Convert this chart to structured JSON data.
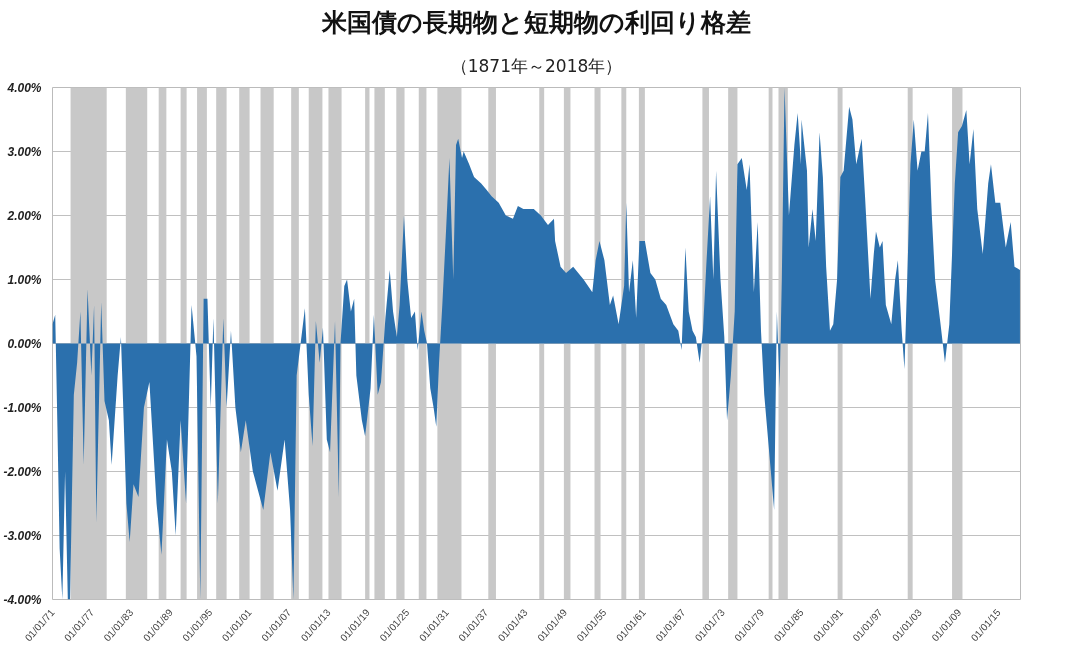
{
  "chart_data": {
    "type": "area",
    "title": "米国債の長期物と短期物の利回り格差",
    "subtitle": "（1871年～2018年）",
    "xlim": [
      "1871-01",
      "2018-05"
    ],
    "ylim": [
      -4,
      4
    ],
    "xticks": [
      {
        "value": "1871-01-01",
        "label": "01/01/71"
      },
      {
        "value": "1877-01-01",
        "label": "01/01/77"
      },
      {
        "value": "1883-01-01",
        "label": "01/01/83"
      },
      {
        "value": "1889-01-01",
        "label": "01/01/89"
      },
      {
        "value": "1895-01-01",
        "label": "01/01/95"
      },
      {
        "value": "1901-01-01",
        "label": "01/01/01"
      },
      {
        "value": "1907-01-01",
        "label": "01/01/07"
      },
      {
        "value": "1913-01-01",
        "label": "01/01/13"
      },
      {
        "value": "1919-01-01",
        "label": "01/01/19"
      },
      {
        "value": "1925-01-01",
        "label": "01/01/25"
      },
      {
        "value": "1931-01-01",
        "label": "01/01/31"
      },
      {
        "value": "1937-01-01",
        "label": "01/01/37"
      },
      {
        "value": "1943-01-01",
        "label": "01/01/43"
      },
      {
        "value": "1949-01-01",
        "label": "01/01/49"
      },
      {
        "value": "1955-01-01",
        "label": "01/01/55"
      },
      {
        "value": "1961-01-01",
        "label": "01/01/61"
      },
      {
        "value": "1967-01-01",
        "label": "01/01/67"
      },
      {
        "value": "1973-01-01",
        "label": "01/01/73"
      },
      {
        "value": "1979-01-01",
        "label": "01/01/79"
      },
      {
        "value": "1985-01-01",
        "label": "01/01/85"
      },
      {
        "value": "1991-01-01",
        "label": "01/01/91"
      },
      {
        "value": "1997-01-01",
        "label": "01/01/97"
      },
      {
        "value": "2003-01-01",
        "label": "01/01/03"
      },
      {
        "value": "2009-01-01",
        "label": "01/01/09"
      },
      {
        "value": "2015-01-01",
        "label": "01/01/15"
      }
    ],
    "yticks": [
      {
        "value": -4,
        "label": "-4.00%"
      },
      {
        "value": -3,
        "label": "-3.00%"
      },
      {
        "value": -2,
        "label": "-2.00%"
      },
      {
        "value": -1,
        "label": "-1.00%"
      },
      {
        "value": 0,
        "label": "0.00%"
      },
      {
        "value": 1,
        "label": "1.00%"
      },
      {
        "value": 2,
        "label": "2.00%"
      },
      {
        "value": 3,
        "label": "3.00%"
      },
      {
        "value": 4,
        "label": "4.00%"
      }
    ],
    "grid": "y",
    "bands": [
      {
        "axis": "x",
        "from": "1873-10",
        "to": "1879-04",
        "color": "#c8c8c8"
      },
      {
        "axis": "x",
        "from": "1882-03",
        "to": "1885-06",
        "color": "#c8c8c8"
      },
      {
        "axis": "x",
        "from": "1887-03",
        "to": "1888-05",
        "color": "#c8c8c8"
      },
      {
        "axis": "x",
        "from": "1890-07",
        "to": "1891-06",
        "color": "#c8c8c8"
      },
      {
        "axis": "x",
        "from": "1893-01",
        "to": "1894-07",
        "color": "#c8c8c8"
      },
      {
        "axis": "x",
        "from": "1895-12",
        "to": "1897-07",
        "color": "#c8c8c8"
      },
      {
        "axis": "x",
        "from": "1899-06",
        "to": "1901-01",
        "color": "#c8c8c8"
      },
      {
        "axis": "x",
        "from": "1902-09",
        "to": "1904-09",
        "color": "#c8c8c8"
      },
      {
        "axis": "x",
        "from": "1907-05",
        "to": "1908-07",
        "color": "#c8c8c8"
      },
      {
        "axis": "x",
        "from": "1910-01",
        "to": "1912-02",
        "color": "#c8c8c8"
      },
      {
        "axis": "x",
        "from": "1913-01",
        "to": "1915-01",
        "color": "#c8c8c8"
      },
      {
        "axis": "x",
        "from": "1918-08",
        "to": "1919-04",
        "color": "#c8c8c8"
      },
      {
        "axis": "x",
        "from": "1920-01",
        "to": "1921-08",
        "color": "#c8c8c8"
      },
      {
        "axis": "x",
        "from": "1923-05",
        "to": "1924-08",
        "color": "#c8c8c8"
      },
      {
        "axis": "x",
        "from": "1926-10",
        "to": "1927-12",
        "color": "#c8c8c8"
      },
      {
        "axis": "x",
        "from": "1929-08",
        "to": "1933-04",
        "color": "#c8c8c8"
      },
      {
        "axis": "x",
        "from": "1937-05",
        "to": "1938-07",
        "color": "#c8c8c8"
      },
      {
        "axis": "x",
        "from": "1945-02",
        "to": "1945-11",
        "color": "#c8c8c8"
      },
      {
        "axis": "x",
        "from": "1948-11",
        "to": "1949-11",
        "color": "#c8c8c8"
      },
      {
        "axis": "x",
        "from": "1953-07",
        "to": "1954-06",
        "color": "#c8c8c8"
      },
      {
        "axis": "x",
        "from": "1957-08",
        "to": "1958-05",
        "color": "#c8c8c8"
      },
      {
        "axis": "x",
        "from": "1960-04",
        "to": "1961-03",
        "color": "#c8c8c8"
      },
      {
        "axis": "x",
        "from": "1969-12",
        "to": "1970-12",
        "color": "#c8c8c8"
      },
      {
        "axis": "x",
        "from": "1973-11",
        "to": "1975-04",
        "color": "#c8c8c8"
      },
      {
        "axis": "x",
        "from": "1980-01",
        "to": "1980-08",
        "color": "#c8c8c8"
      },
      {
        "axis": "x",
        "from": "1981-07",
        "to": "1982-12",
        "color": "#c8c8c8"
      },
      {
        "axis": "x",
        "from": "1990-07",
        "to": "1991-04",
        "color": "#c8c8c8"
      },
      {
        "axis": "x",
        "from": "2001-03",
        "to": "2001-12",
        "color": "#c8c8c8"
      },
      {
        "axis": "x",
        "from": "2007-12",
        "to": "2009-07",
        "color": "#c8c8c8"
      }
    ],
    "series": [
      {
        "color": "#2b70ad",
        "x": [
          "1871-01",
          "1871-06",
          "1871-10",
          "1872-02",
          "1872-07",
          "1872-12",
          "1873-05",
          "1873-09",
          "1874-04",
          "1874-10",
          "1875-04",
          "1875-10",
          "1876-05",
          "1876-12",
          "1877-05",
          "1877-09",
          "1878-06",
          "1878-12",
          "1879-08",
          "1880-01",
          "1880-12",
          "1881-06",
          "1882-04",
          "1882-10",
          "1883-05",
          "1884-02",
          "1884-12",
          "1885-10",
          "1886-11",
          "1887-08",
          "1888-06",
          "1889-03",
          "1889-10",
          "1890-07",
          "1891-05",
          "1892-03",
          "1892-12",
          "1893-07",
          "1894-01",
          "1894-08",
          "1895-02",
          "1895-07",
          "1896-03",
          "1897-01",
          "1897-07",
          "1898-03",
          "1898-11",
          "1899-09",
          "1900-06",
          "1901-07",
          "1903-02",
          "1904-03",
          "1905-04",
          "1906-05",
          "1907-03",
          "1907-09",
          "1908-03",
          "1909-01",
          "1909-06",
          "1910-01",
          "1910-08",
          "1911-02",
          "1911-09",
          "1912-03",
          "1912-10",
          "1913-04",
          "1914-01",
          "1914-08",
          "1914-11",
          "1915-06",
          "1915-11",
          "1916-06",
          "1916-12",
          "1917-04",
          "1918-02",
          "1918-08",
          "1919-06",
          "1919-12",
          "1920-07",
          "1921-01",
          "1921-09",
          "1922-05",
          "1922-11",
          "1923-06",
          "1923-11",
          "1924-07",
          "1925-01",
          "1925-08",
          "1926-03",
          "1926-08",
          "1927-03",
          "1927-08",
          "1928-01",
          "1928-07",
          "1929-01",
          "1929-06",
          "1929-11",
          "1930-05",
          "1930-12",
          "1931-06",
          "1932-01",
          "1932-06",
          "1932-10",
          "1933-05",
          "1933-08",
          "1934-06",
          "1935-03",
          "1936-04",
          "1937-02",
          "1937-11",
          "1938-12",
          "1940-01",
          "1941-02",
          "1941-11",
          "1942-09",
          "1944-04",
          "1945-05",
          "1946-06",
          "1947-05",
          "1947-07",
          "1948-05",
          "1949-03",
          "1950-04",
          "1951-11",
          "1953-03",
          "1953-09",
          "1954-04",
          "1955-01",
          "1955-11",
          "1956-05",
          "1957-03",
          "1958-01",
          "1958-05",
          "1958-10",
          "1959-05",
          "1959-11",
          "1960-05",
          "1961-03",
          "1962-01",
          "1962-10",
          "1963-08",
          "1964-06",
          "1965-07",
          "1966-04",
          "1966-10",
          "1967-05",
          "1967-11",
          "1968-06",
          "1968-12",
          "1969-07",
          "1970-01",
          "1970-07",
          "1971-02",
          "1971-08",
          "1972-01",
          "1972-09",
          "1973-04",
          "1973-09",
          "1974-04",
          "1974-11",
          "1975-04",
          "1975-12",
          "1976-09",
          "1977-02",
          "1977-10",
          "1978-05",
          "1978-11",
          "1979-05",
          "1980-03",
          "1980-11",
          "1981-04",
          "1981-09",
          "1982-01",
          "1982-06",
          "1983-02",
          "1983-12",
          "1984-06",
          "1984-12",
          "1985-01",
          "1985-11",
          "1986-02",
          "1986-09",
          "1987-03",
          "1987-10",
          "1988-04",
          "1988-10",
          "1989-05",
          "1989-11",
          "1990-06",
          "1990-12",
          "1991-06",
          "1992-04",
          "1992-10",
          "1993-05",
          "1994-03",
          "1994-09",
          "1995-07",
          "1996-01",
          "1996-05",
          "1996-12",
          "1997-05",
          "1997-11",
          "1998-09",
          "1999-04",
          "1999-09",
          "2000-04",
          "2000-09",
          "2001-02",
          "2001-08",
          "2002-02",
          "2002-09",
          "2003-04",
          "2003-10",
          "2004-04",
          "2004-11",
          "2005-05",
          "2006-03",
          "2006-11",
          "2007-07",
          "2008-05",
          "2008-11",
          "2009-06",
          "2010-02",
          "2010-08",
          "2011-03",
          "2011-10",
          "2012-08",
          "2013-06",
          "2013-11",
          "2014-07",
          "2015-04",
          "2016-02",
          "2016-11",
          "2017-06",
          "2018-04"
        ],
        "values": [
          0.3,
          0.45,
          -1.3,
          -3.2,
          -4.0,
          -2.0,
          -4.0,
          -4.0,
          -0.8,
          -0.3,
          0.5,
          -1.9,
          0.85,
          -0.5,
          0.6,
          -2.8,
          0.65,
          -0.9,
          -1.2,
          -1.9,
          -0.5,
          0.1,
          -2.5,
          -3.1,
          -2.2,
          -2.4,
          -1.0,
          -0.6,
          -2.5,
          -3.3,
          -1.5,
          -2.0,
          -3.0,
          -1.2,
          -2.5,
          0.6,
          -0.2,
          -4.0,
          0.7,
          0.7,
          -1.0,
          0.4,
          -2.5,
          0.4,
          -1.0,
          0.2,
          -1.0,
          -1.7,
          -1.2,
          -2.0,
          -2.6,
          -1.7,
          -2.3,
          -1.5,
          -2.6,
          -4.0,
          -0.5,
          0.2,
          0.55,
          -0.8,
          -1.6,
          0.35,
          -0.3,
          0.25,
          -1.5,
          -1.7,
          0.35,
          -2.4,
          0.0,
          0.9,
          1.0,
          0.5,
          0.7,
          -0.5,
          -1.2,
          -1.45,
          -0.7,
          0.45,
          -0.8,
          -0.6,
          0.4,
          1.15,
          0.5,
          0.1,
          0.6,
          2.0,
          1.0,
          0.4,
          0.5,
          -0.1,
          0.5,
          0.2,
          0.0,
          -0.7,
          -1.0,
          -1.3,
          -0.3,
          0.6,
          1.8,
          2.9,
          1.0,
          3.1,
          3.2,
          2.9,
          3.0,
          2.8,
          2.6,
          2.5,
          2.4,
          2.3,
          2.2,
          2.0,
          1.95,
          2.15,
          2.1,
          2.1,
          2.0,
          1.85,
          1.95,
          1.6,
          1.2,
          1.1,
          1.2,
          1.0,
          0.8,
          1.3,
          1.6,
          1.3,
          0.6,
          0.75,
          0.3,
          0.9,
          2.2,
          0.8,
          1.3,
          0.4,
          1.6,
          1.6,
          1.1,
          1.0,
          0.7,
          0.6,
          0.3,
          0.2,
          -0.1,
          1.5,
          0.5,
          0.2,
          0.1,
          -0.3,
          0.2,
          1.2,
          2.3,
          1.0,
          2.7,
          1.0,
          0.1,
          -1.2,
          -0.5,
          0.5,
          2.8,
          2.9,
          2.4,
          2.8,
          0.8,
          1.9,
          0.2,
          -0.8,
          -1.8,
          -2.6,
          0.5,
          -0.7,
          1.0,
          4.0,
          2.0,
          3.1,
          3.6,
          2.8,
          3.5,
          2.7,
          1.5,
          2.1,
          1.6,
          3.3,
          2.6,
          1.2,
          0.2,
          0.3,
          1.0,
          2.6,
          2.7,
          3.7,
          3.5,
          2.8,
          3.2,
          2.3,
          0.7,
          1.4,
          1.75,
          1.5,
          1.6,
          0.6,
          0.3,
          1.0,
          1.3,
          0.2,
          -0.4,
          1.0,
          2.8,
          3.5,
          2.7,
          3.0,
          3.0,
          3.6,
          2.0,
          1.0,
          0.3,
          -0.3,
          0.3,
          2.5,
          3.3,
          3.4,
          3.65,
          2.8,
          3.35,
          2.1,
          1.4,
          2.5,
          2.8,
          2.2,
          2.2,
          1.5,
          1.9,
          1.2,
          1.15
        ]
      }
    ]
  }
}
